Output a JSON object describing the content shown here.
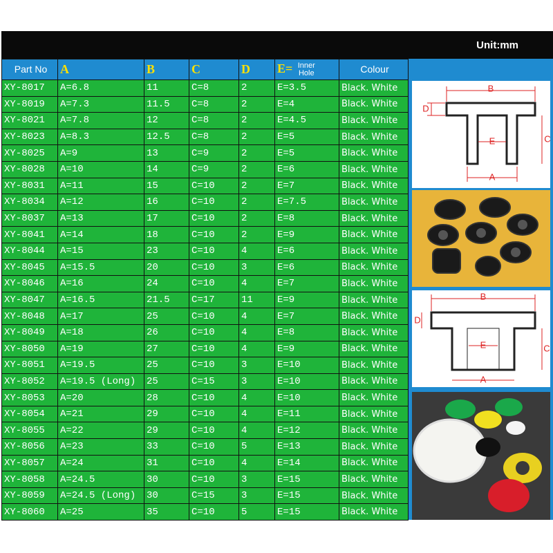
{
  "header": {
    "unit": "Unit:mm",
    "columns": [
      "Part No",
      "A",
      "B",
      "C",
      "D",
      "E=",
      "Colour"
    ],
    "e_note": "Inner Hole"
  },
  "table": {
    "rows": [
      [
        "XY-8017",
        "A=6.8",
        "11",
        "C=8",
        "2",
        "E=3.5",
        "Black. White"
      ],
      [
        "XY-8019",
        "A=7.3",
        "11.5",
        "C=8",
        "2",
        "E=4",
        "Black. White"
      ],
      [
        "XY-8021",
        "A=7.8",
        "12",
        "C=8",
        "2",
        "E=4.5",
        "Black. White"
      ],
      [
        "XY-8023",
        "A=8.3",
        "12.5",
        "C=8",
        "2",
        "E=5",
        "Black. White"
      ],
      [
        "XY-8025",
        "A=9",
        "13",
        "C=9",
        "2",
        "E=5",
        "Black. White"
      ],
      [
        "XY-8028",
        "A=10",
        "14",
        "C=9",
        "2",
        "E=6",
        "Black. White"
      ],
      [
        "XY-8031",
        "A=11",
        "15",
        "C=10",
        "2",
        "E=7",
        "Black. White"
      ],
      [
        "XY-8034",
        "A=12",
        "16",
        "C=10",
        "2",
        "E=7.5",
        "Black. White"
      ],
      [
        "XY-8037",
        "A=13",
        "17",
        "C=10",
        "2",
        "E=8",
        "Black. White"
      ],
      [
        "XY-8041",
        "A=14",
        "18",
        "C=10",
        "2",
        "E=9",
        "Black. White"
      ],
      [
        "XY-8044",
        "A=15",
        "23",
        "C=10",
        "4",
        "E=6",
        "Black. White"
      ],
      [
        "XY-8045",
        "A=15.5",
        "20",
        "C=10",
        "3",
        "E=6",
        "Black. White"
      ],
      [
        "XY-8046",
        "A=16",
        "24",
        "C=10",
        "4",
        "E=7",
        "Black. White"
      ],
      [
        "XY-8047",
        "A=16.5",
        "21.5",
        "C=17",
        "11",
        "E=9",
        "Black. White"
      ],
      [
        "XY-8048",
        "A=17",
        "25",
        "C=10",
        "4",
        "E=7",
        "Black. White"
      ],
      [
        "XY-8049",
        "A=18",
        "26",
        "C=10",
        "4",
        "E=8",
        "Black. White"
      ],
      [
        "XY-8050",
        "A=19",
        "27",
        "C=10",
        "4",
        "E=9",
        "Black. White"
      ],
      [
        "XY-8051",
        "A=19.5",
        "25",
        "C=10",
        "3",
        "E=10",
        "Black. White"
      ],
      [
        "XY-8052",
        "A=19.5 (Long)",
        "25",
        "C=15",
        "3",
        "E=10",
        "Black. White"
      ],
      [
        "XY-8053",
        "A=20",
        "28",
        "C=10",
        "4",
        "E=10",
        "Black. White"
      ],
      [
        "XY-8054",
        "A=21",
        "29",
        "C=10",
        "4",
        "E=11",
        "Black. White"
      ],
      [
        "XY-8055",
        "A=22",
        "29",
        "C=10",
        "4",
        "E=12",
        "Black. White"
      ],
      [
        "XY-8056",
        "A=23",
        "33",
        "C=10",
        "5",
        "E=13",
        "Black. White"
      ],
      [
        "XY-8057",
        "A=24",
        "31",
        "C=10",
        "4",
        "E=14",
        "Black. White"
      ],
      [
        "XY-8058",
        "A=24.5",
        "30",
        "C=10",
        "3",
        "E=15",
        "Black. White"
      ],
      [
        "XY-8059",
        "A=24.5 (Long)",
        "30",
        "C=15",
        "3",
        "E=15",
        "Black. White"
      ],
      [
        "XY-8060",
        "A=25",
        "35",
        "C=10",
        "5",
        "E=15",
        "Black. White"
      ]
    ]
  },
  "diagrams": [
    {
      "labels": [
        "B",
        "D",
        "E",
        "C",
        "A"
      ]
    },
    {
      "labels": [
        "B",
        "D",
        "E",
        "C",
        "A"
      ]
    }
  ]
}
